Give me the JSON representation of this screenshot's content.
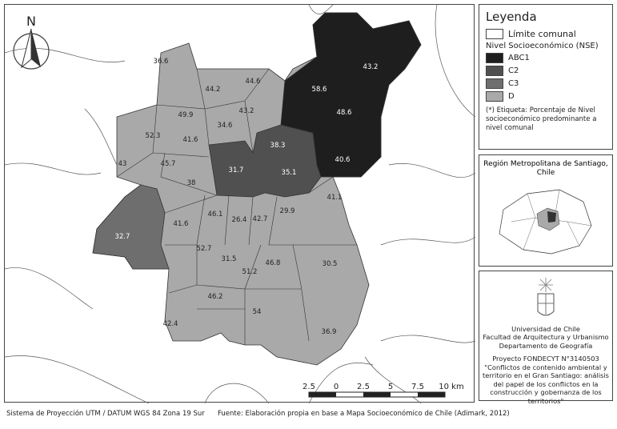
{
  "legend": {
    "title": "Leyenda",
    "boundary": "Límite comunal",
    "nse_title": "Nivel Socioeconómico (NSE)",
    "classes": [
      {
        "label": "ABC1",
        "color": "#1e1e1e"
      },
      {
        "label": "C2",
        "color": "#505050"
      },
      {
        "label": "C3",
        "color": "#6e6e6e"
      },
      {
        "label": "D",
        "color": "#a9a9a9"
      }
    ],
    "note": "(*) Etiqueta: Porcentaje de Nivel socioeconómico predominante a nivel comunal"
  },
  "inset": {
    "title": "Región Metropolitana de Santiago, Chile"
  },
  "credits": {
    "institution": [
      "Universidad de Chile",
      "Facultad de Arquitectura y Urbanismo",
      "Departamento de Geografía"
    ],
    "project": "Proyecto FONDECYT N°3140503",
    "project_title": "\"Conflictos de contenido ambiental y territorio en el Gran Santiago: análisis del papel de los conflictos en la construcción y gobernanza de los territorios\""
  },
  "north": "N",
  "scale": {
    "ticks": [
      "2.5",
      "0",
      "2.5",
      "5",
      "7.5",
      "10 km"
    ]
  },
  "footer": {
    "projection": "Sistema de Proyección UTM / DATUM WGS 84 Zona 19 Sur",
    "source": "Fuente: Elaboración propia en base a Mapa Socioeconómico de Chile (Adimark, 2012)"
  },
  "comunas": [
    {
      "v": "43.2",
      "c": "ABC1"
    },
    {
      "v": "36.6",
      "c": "D"
    },
    {
      "v": "44.2",
      "c": "D"
    },
    {
      "v": "44.6",
      "c": "D"
    },
    {
      "v": "58.6",
      "c": "ABC1"
    },
    {
      "v": "49.9",
      "c": "D"
    },
    {
      "v": "43.2",
      "c": "D"
    },
    {
      "v": "48.6",
      "c": "ABC1"
    },
    {
      "v": "34.6",
      "c": "D"
    },
    {
      "v": "52.3",
      "c": "D"
    },
    {
      "v": "41.6",
      "c": "D"
    },
    {
      "v": "38.3",
      "c": "C2"
    },
    {
      "v": "40.6",
      "c": "ABC1"
    },
    {
      "v": "43",
      "c": "D"
    },
    {
      "v": "45.7",
      "c": "D"
    },
    {
      "v": "31.7",
      "c": "C2"
    },
    {
      "v": "35.1",
      "c": "C2"
    },
    {
      "v": "38",
      "c": "D"
    },
    {
      "v": "41.1",
      "c": "D"
    },
    {
      "v": "46.1",
      "c": "D"
    },
    {
      "v": "26.4",
      "c": "D"
    },
    {
      "v": "42.7",
      "c": "D"
    },
    {
      "v": "29.9",
      "c": "D"
    },
    {
      "v": "41.6",
      "c": "D"
    },
    {
      "v": "32.7",
      "c": "C3"
    },
    {
      "v": "52.7",
      "c": "D"
    },
    {
      "v": "31.5",
      "c": "D"
    },
    {
      "v": "46.8",
      "c": "D"
    },
    {
      "v": "30.5",
      "c": "D"
    },
    {
      "v": "51.2",
      "c": "D"
    },
    {
      "v": "46.2",
      "c": "D"
    },
    {
      "v": "54",
      "c": "D"
    },
    {
      "v": "42.4",
      "c": "D"
    },
    {
      "v": "36.9",
      "c": "D"
    }
  ]
}
